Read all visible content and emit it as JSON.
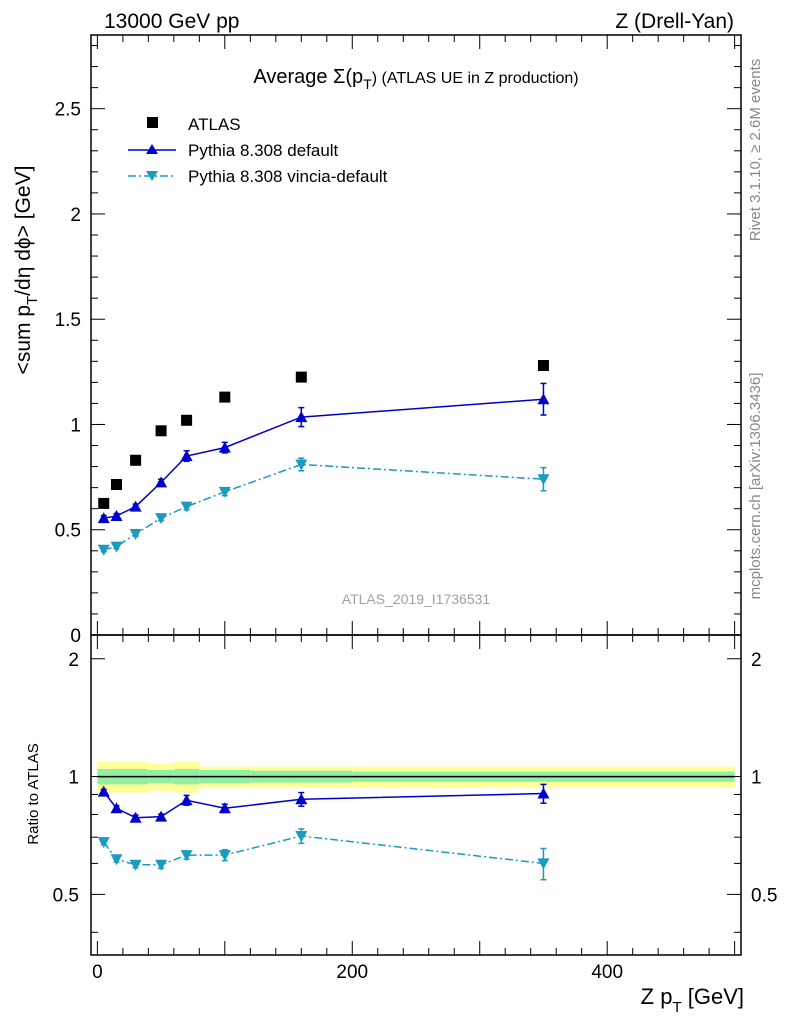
{
  "header": {
    "left": "13000 GeV pp",
    "right": "Z (Drell-Yan)"
  },
  "side_labels": {
    "rivet": "Rivet 3.1.10, ≥ 2.6M events",
    "mcplots": "mcplots.cern.ch [arXiv:1306.3436]"
  },
  "chart_data": [
    {
      "type": "scatter",
      "title": "Average Σ(p_T) (ATLAS UE in Z production)",
      "title_text": {
        "prefix": "Average ",
        "sigma": "Σ(p",
        "sub": "T",
        "suffix": ") (ATLAS UE in Z production)"
      },
      "ylabel": "<sum p_T/dη dϕ> [GeV]",
      "ylabel_text": {
        "prefix": "<sum p",
        "sub": "T",
        "suffix": "/dη dϕ> [GeV]"
      },
      "analysis_label": "ATLAS_2019_I1736531",
      "xlim": [
        -5,
        505
      ],
      "ylim": [
        0,
        2.85
      ],
      "y_ticks": [
        0,
        0.5,
        1,
        1.5,
        2,
        2.5
      ],
      "y_tick_labels": [
        "0",
        "0.5",
        "1",
        "1.5",
        "2",
        "2.5"
      ],
      "legend_position": "top-left",
      "series": [
        {
          "name": "ATLAS",
          "style": "square-marker",
          "color": "#000000",
          "x": [
            5,
            15,
            30,
            50,
            70,
            100,
            160,
            350
          ],
          "y": [
            0.625,
            0.715,
            0.83,
            0.97,
            1.02,
            1.13,
            1.225,
            1.28
          ],
          "err": [
            0,
            0,
            0,
            0,
            0,
            0,
            0,
            0
          ]
        },
        {
          "name": "Pythia 8.308 default",
          "style": "triangle-up solid-line",
          "color": "#0000cc",
          "x": [
            5,
            15,
            30,
            50,
            70,
            100,
            160,
            350
          ],
          "y": [
            0.555,
            0.565,
            0.61,
            0.725,
            0.85,
            0.89,
            1.035,
            1.12
          ],
          "err": [
            0.012,
            0.012,
            0.012,
            0.015,
            0.025,
            0.025,
            0.045,
            0.075
          ]
        },
        {
          "name": "Pythia 8.308 vincia-default",
          "style": "triangle-down dash-dot-line",
          "color": "#1a9bbf",
          "x": [
            5,
            15,
            30,
            50,
            70,
            100,
            160,
            350
          ],
          "y": [
            0.405,
            0.42,
            0.48,
            0.555,
            0.61,
            0.68,
            0.81,
            0.74
          ],
          "err": [
            0.01,
            0.01,
            0.01,
            0.012,
            0.015,
            0.018,
            0.03,
            0.055
          ]
        }
      ]
    },
    {
      "type": "scatter",
      "ylabel": "Ratio to ATLAS",
      "xlabel": "Z p_T [GeV]",
      "xlabel_text": {
        "prefix": "Z p",
        "sub": "T",
        "suffix": " [GeV]"
      },
      "xlim": [
        -5,
        505
      ],
      "ylim": [
        0.35,
        2.3
      ],
      "x_ticks": [
        0,
        200,
        400
      ],
      "x_tick_labels": [
        "0",
        "200",
        "400"
      ],
      "y_ticks": [
        0.5,
        1,
        2
      ],
      "y_tick_labels": [
        "0.5",
        "1",
        "2"
      ],
      "reference_line": 1,
      "uncertainty_bands": [
        {
          "x_edges": [
            0,
            10,
            20,
            40,
            60,
            80,
            120,
            200,
            500
          ],
          "inner": [
            0.045,
            0.045,
            0.045,
            0.04,
            0.045,
            0.04,
            0.035,
            0.03
          ],
          "outer": [
            0.09,
            0.09,
            0.09,
            0.08,
            0.09,
            0.06,
            0.06,
            0.06
          ]
        }
      ],
      "band_colors": {
        "inner": "#8ef0a0",
        "outer": "#ffff99"
      },
      "series": [
        {
          "name": "Pythia 8.308 default",
          "color": "#0000cc",
          "x": [
            5,
            15,
            30,
            50,
            70,
            100,
            160,
            350
          ],
          "y": [
            0.915,
            0.83,
            0.785,
            0.79,
            0.87,
            0.83,
            0.875,
            0.905
          ],
          "err": [
            0.012,
            0.012,
            0.012,
            0.012,
            0.025,
            0.02,
            0.035,
            0.05
          ]
        },
        {
          "name": "Pythia 8.308 vincia-default",
          "color": "#1a9bbf",
          "x": [
            5,
            15,
            30,
            50,
            70,
            100,
            160,
            350
          ],
          "y": [
            0.68,
            0.615,
            0.595,
            0.595,
            0.63,
            0.63,
            0.705,
            0.6
          ],
          "err": [
            0.01,
            0.01,
            0.01,
            0.012,
            0.015,
            0.02,
            0.03,
            0.055
          ]
        }
      ]
    }
  ]
}
